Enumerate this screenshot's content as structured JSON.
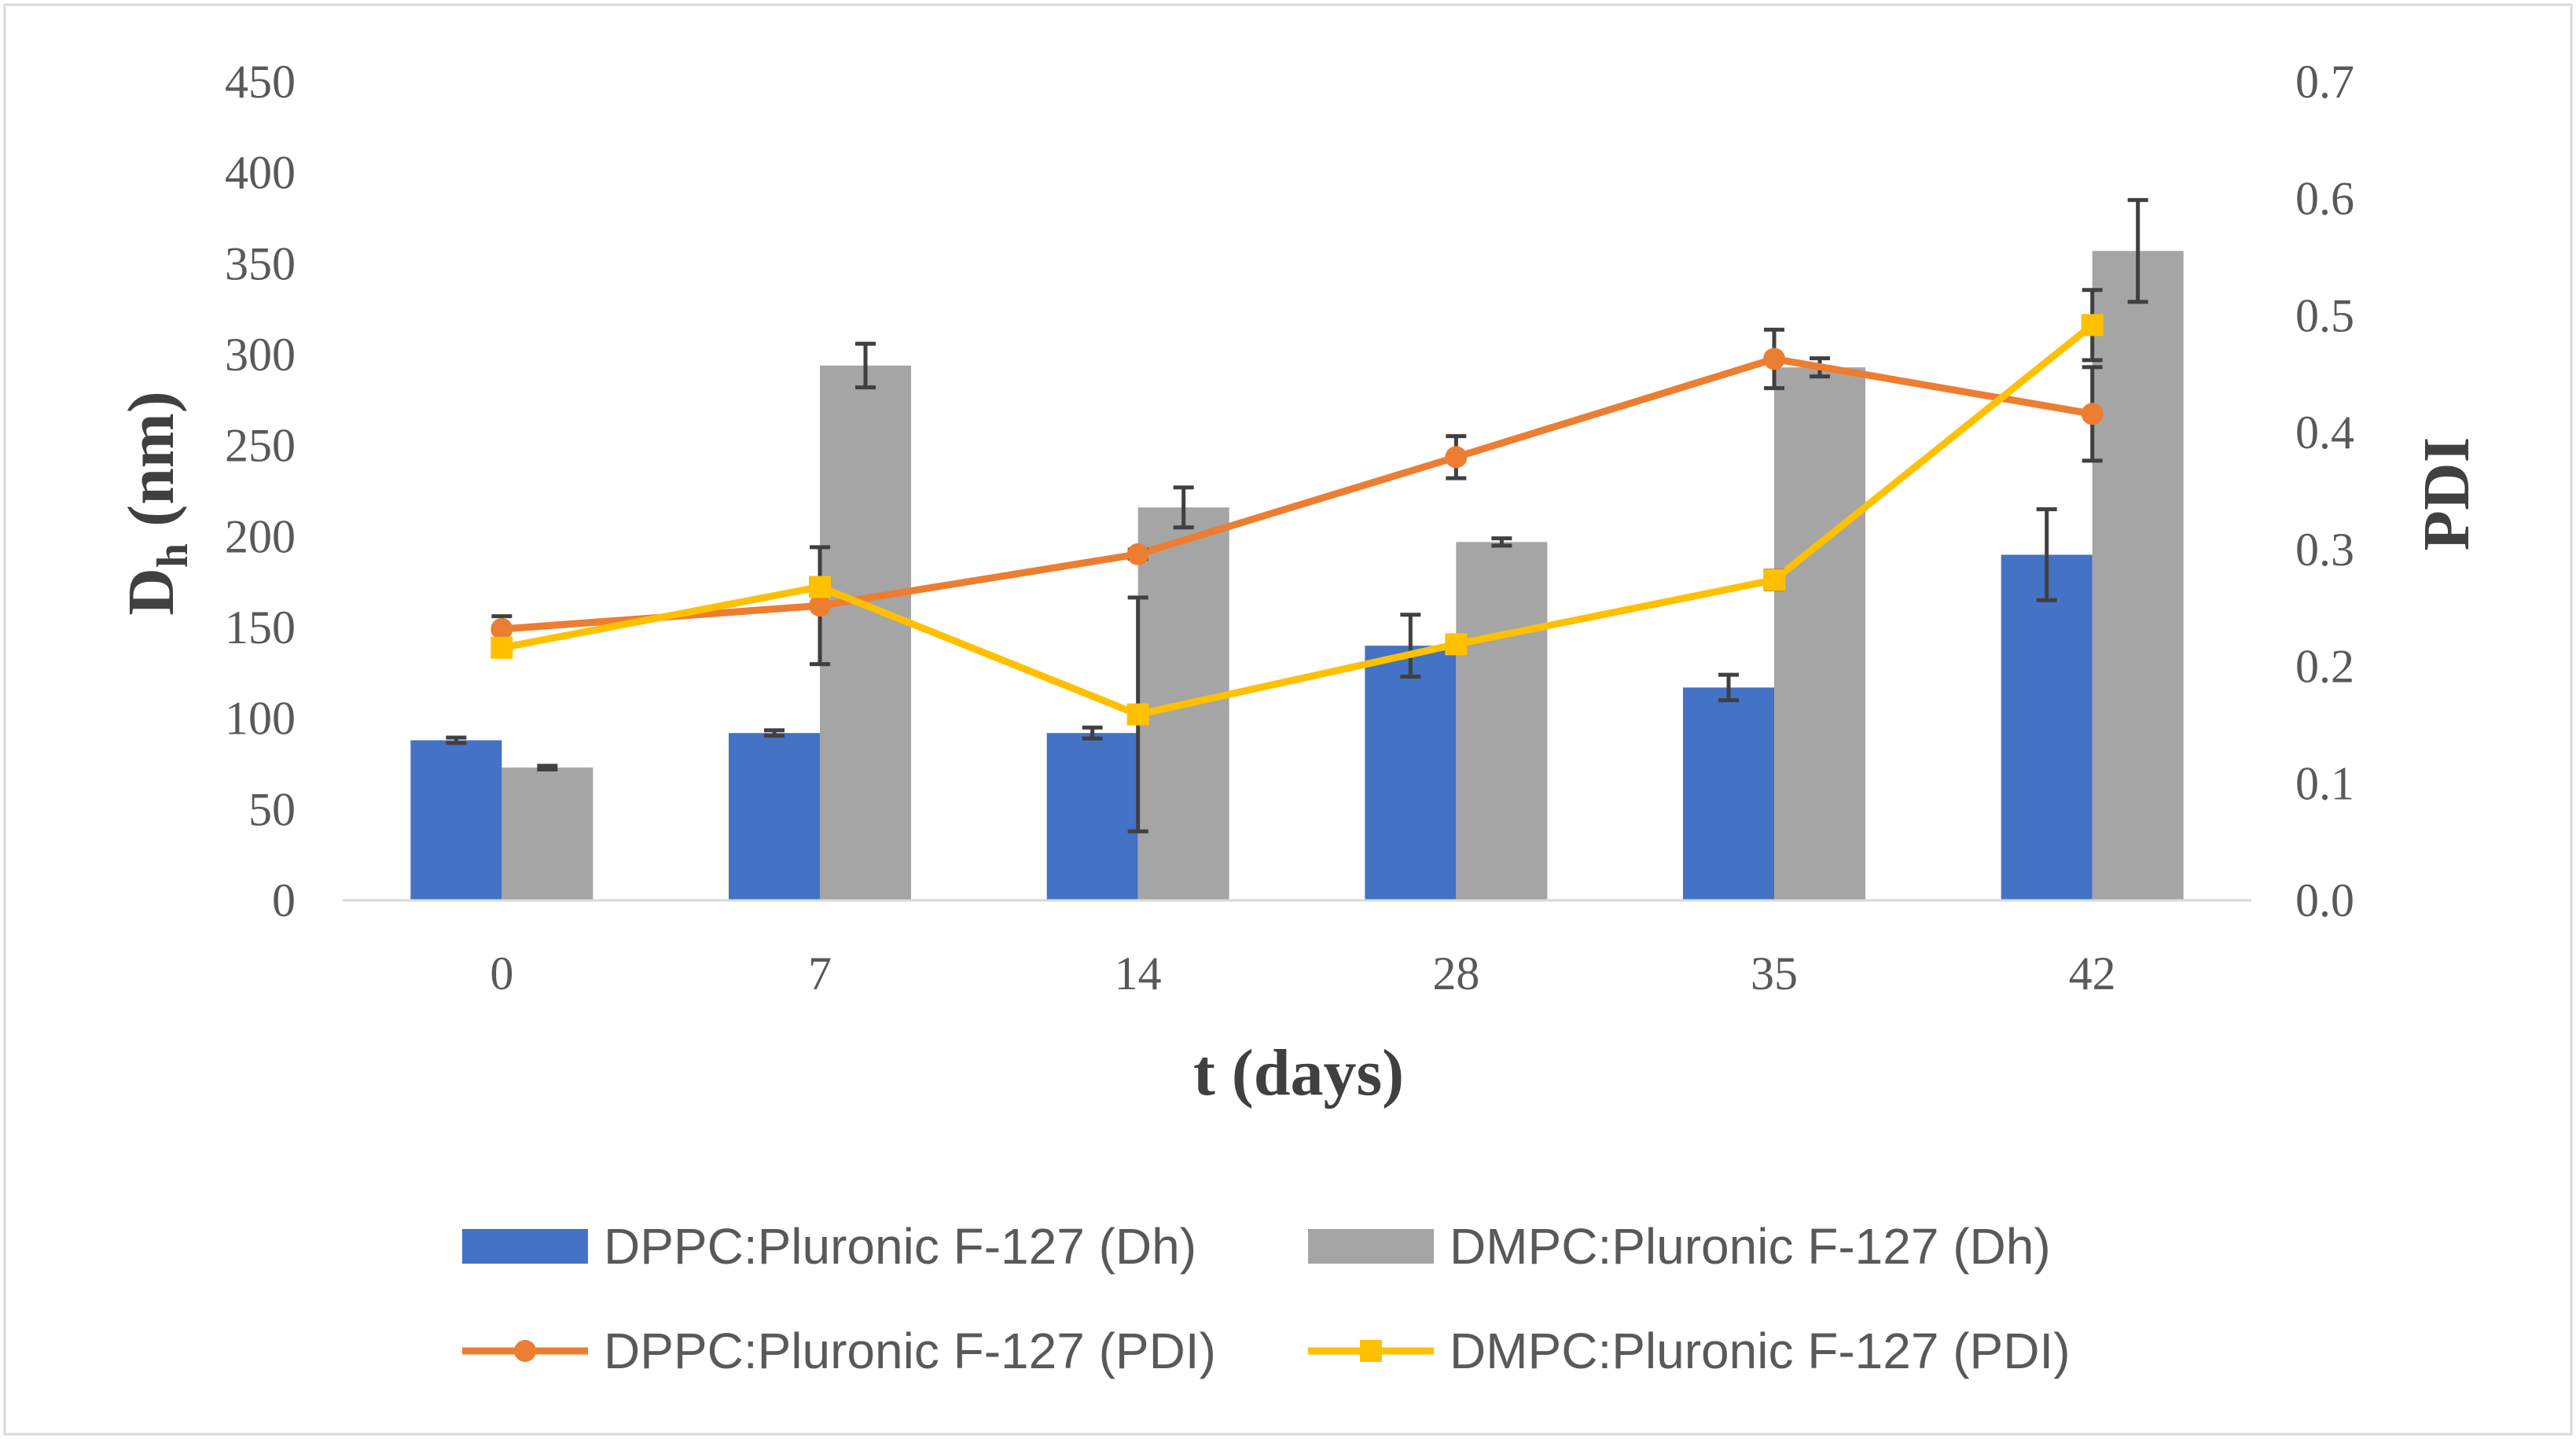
{
  "chart_data": {
    "type": "bar",
    "title": "",
    "xlabel": "t (days)",
    "ylabel_main": "D",
    "ylabel_sub": "h",
    "ylabel_unit": " (nm)",
    "y2label": "PDI",
    "categories": [
      "0",
      "7",
      "14",
      "28",
      "35",
      "42"
    ],
    "ylim": [
      0,
      450
    ],
    "y2lim": [
      0,
      0.7
    ],
    "yticks": [
      "0",
      "50",
      "100",
      "150",
      "200",
      "250",
      "300",
      "350",
      "400",
      "450"
    ],
    "y2ticks": [
      "0.0",
      "0.1",
      "0.2",
      "0.3",
      "0.4",
      "0.5",
      "0.6",
      "0.7"
    ],
    "grid": false,
    "legend_position": "bottom",
    "series": [
      {
        "name": "DPPC:Pluronic F-127 (Dh)",
        "kind": "bar",
        "axis": "left",
        "color": "#4472c4",
        "values": [
          88,
          92,
          92,
          140,
          117,
          190
        ],
        "errors": [
          1.5,
          1.5,
          3,
          17,
          7,
          25
        ]
      },
      {
        "name": "DMPC:Pluronic F-127 (Dh)",
        "kind": "bar",
        "axis": "left",
        "color": "#a5a5a5",
        "values": [
          73,
          294,
          216,
          197,
          293,
          357
        ],
        "errors": [
          1,
          12,
          11,
          2,
          5,
          28
        ]
      },
      {
        "name": "DPPC:Pluronic F-127 (PDI)",
        "kind": "line",
        "axis": "right",
        "color": "#ed7d31",
        "marker": "circle",
        "values": [
          0.232,
          0.252,
          0.296,
          0.379,
          0.463,
          0.416
        ],
        "errors": [
          0.011,
          0.05,
          0.004,
          0.018,
          0.025,
          0.04
        ]
      },
      {
        "name": "DMPC:Pluronic F-127 (PDI)",
        "kind": "line",
        "axis": "right",
        "color": "#ffc000",
        "marker": "square",
        "values": [
          0.216,
          0.268,
          0.159,
          0.219,
          0.274,
          0.492
        ],
        "errors": [
          0.006,
          0.005,
          0.1,
          0.005,
          0.008,
          0.03
        ]
      }
    ]
  }
}
